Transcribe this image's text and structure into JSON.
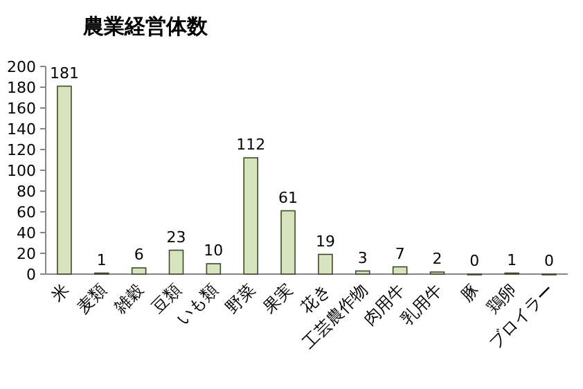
{
  "chart_data": {
    "type": "bar",
    "title": "農業経営体数",
    "categories": [
      "米",
      "麦類",
      "雑穀",
      "豆類",
      "いも類",
      "野菜",
      "果実",
      "花き",
      "工芸農作物",
      "肉用牛",
      "乳用牛",
      "豚",
      "鶏卵",
      "ブロイラー"
    ],
    "values": [
      181,
      1,
      6,
      23,
      10,
      112,
      61,
      19,
      3,
      7,
      2,
      0,
      1,
      0
    ],
    "color": "#d7e4bd",
    "ylim": [
      0,
      200
    ],
    "yticks": [
      0,
      20,
      40,
      60,
      80,
      100,
      120,
      140,
      160,
      180,
      200
    ],
    "data_labels": true,
    "grid": false
  }
}
